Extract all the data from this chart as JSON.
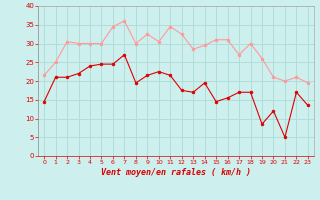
{
  "x": [
    0,
    1,
    2,
    3,
    4,
    5,
    6,
    7,
    8,
    9,
    10,
    11,
    12,
    13,
    14,
    15,
    16,
    17,
    18,
    19,
    20,
    21,
    22,
    23
  ],
  "vent_moyen": [
    14.5,
    21,
    21,
    22,
    24,
    24.5,
    24.5,
    27,
    19.5,
    21.5,
    22.5,
    21.5,
    17.5,
    17,
    19.5,
    14.5,
    15.5,
    17,
    17,
    8.5,
    12,
    5,
    17,
    13.5
  ],
  "rafales": [
    21.5,
    25,
    30.5,
    30,
    30,
    30,
    34.5,
    36,
    30,
    32.5,
    30.5,
    34.5,
    32.5,
    28.5,
    29.5,
    31,
    31,
    27,
    30,
    26,
    21,
    20,
    21,
    19.5
  ],
  "xlabel": "Vent moyen/en rafales ( km/h )",
  "ylim": [
    0,
    40
  ],
  "yticks": [
    0,
    5,
    10,
    15,
    20,
    25,
    30,
    35,
    40
  ],
  "bg_color": "#cdf0ee",
  "grid_color": "#b0ddd8",
  "line_color_moyen": "#dd0000",
  "line_color_rafales": "#ff9999",
  "tick_color": "#dd0000",
  "xlabel_color": "#dd0000"
}
